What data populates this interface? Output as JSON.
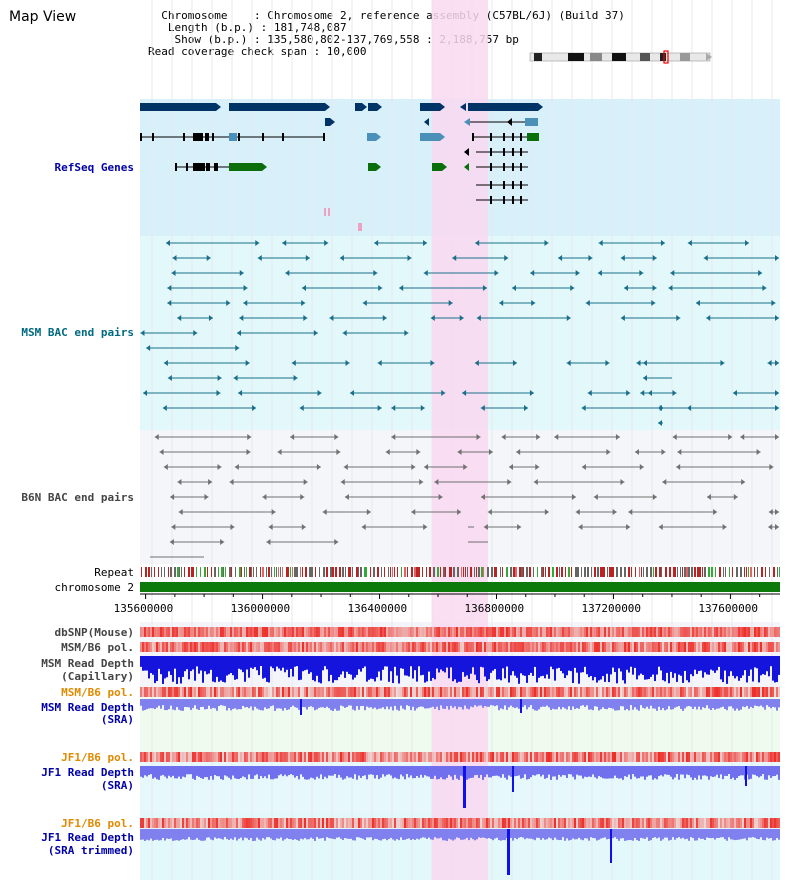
{
  "header": {
    "title": "Map View",
    "chromosome_line": "  Chromosome    : Chromosome 2, reference assembly (C57BL/6J) (Build 37)",
    "length_line": "   Length (b.p.) : 181,748,087",
    "show_line": "    Show (b.p.) : 135,580,802-137,769,558 : 2,188,757 bp",
    "span_line": "Read coverage check span : 10,000"
  },
  "colors": {
    "highlight": "#f9d8f0",
    "refseq_bg": "#d8f0fa",
    "msm_bg": "#e2f8fa",
    "b6n_bg": "#f5f6fa",
    "gene_dark": "#003366",
    "gene_mid": "#4a90b8",
    "gene_green": "#0a6e0a",
    "msm_pair": "#1a6e8a",
    "b6n_pair": "#707070",
    "chrom_green": "#0b7a0b",
    "depth_blue": "#1010ee",
    "depth_light": "#8888ee",
    "pol_red": "#ee3030"
  },
  "tracks": {
    "refseq": "RefSeq Genes",
    "msm_bac": "MSM BAC end pairs",
    "b6n_bac": "B6N BAC end pairs",
    "repeat": "Repeat",
    "chromosome": "chromosome 2",
    "dbsnp": "dbSNP(Mouse)",
    "msm_b6_pol_1": "MSM/B6 pol.",
    "msm_read_depth_cap": "MSM Read Depth",
    "capillary": "(Capillary)",
    "msm_b6_pol_2": "MSM/B6 pol.",
    "msm_read_depth_sra": "MSM Read Depth",
    "sra1": "(SRA)",
    "jf1_b6_pol_1": "JF1/B6 pol.",
    "jf1_read_depth": "JF1 Read Depth",
    "sra2": "(SRA)",
    "jf1_b6_pol_2": "JF1/B6 pol.",
    "jf1_read_depth_trim": "JF1 Read Depth",
    "sra_trimmed": "(SRA trimmed)"
  },
  "axis": {
    "ticks": [
      "135600000",
      "136000000",
      "136400000",
      "136800000",
      "137200000",
      "137600000"
    ],
    "range_bp": [
      135580802,
      137769558
    ]
  },
  "label_colors": {
    "refseq": "#0000aa",
    "msm": "#006a80",
    "b6n": "#444444",
    "repeat": "#000000",
    "gray": "#444444",
    "orange": "#e08a00",
    "blue": "#0000aa"
  }
}
